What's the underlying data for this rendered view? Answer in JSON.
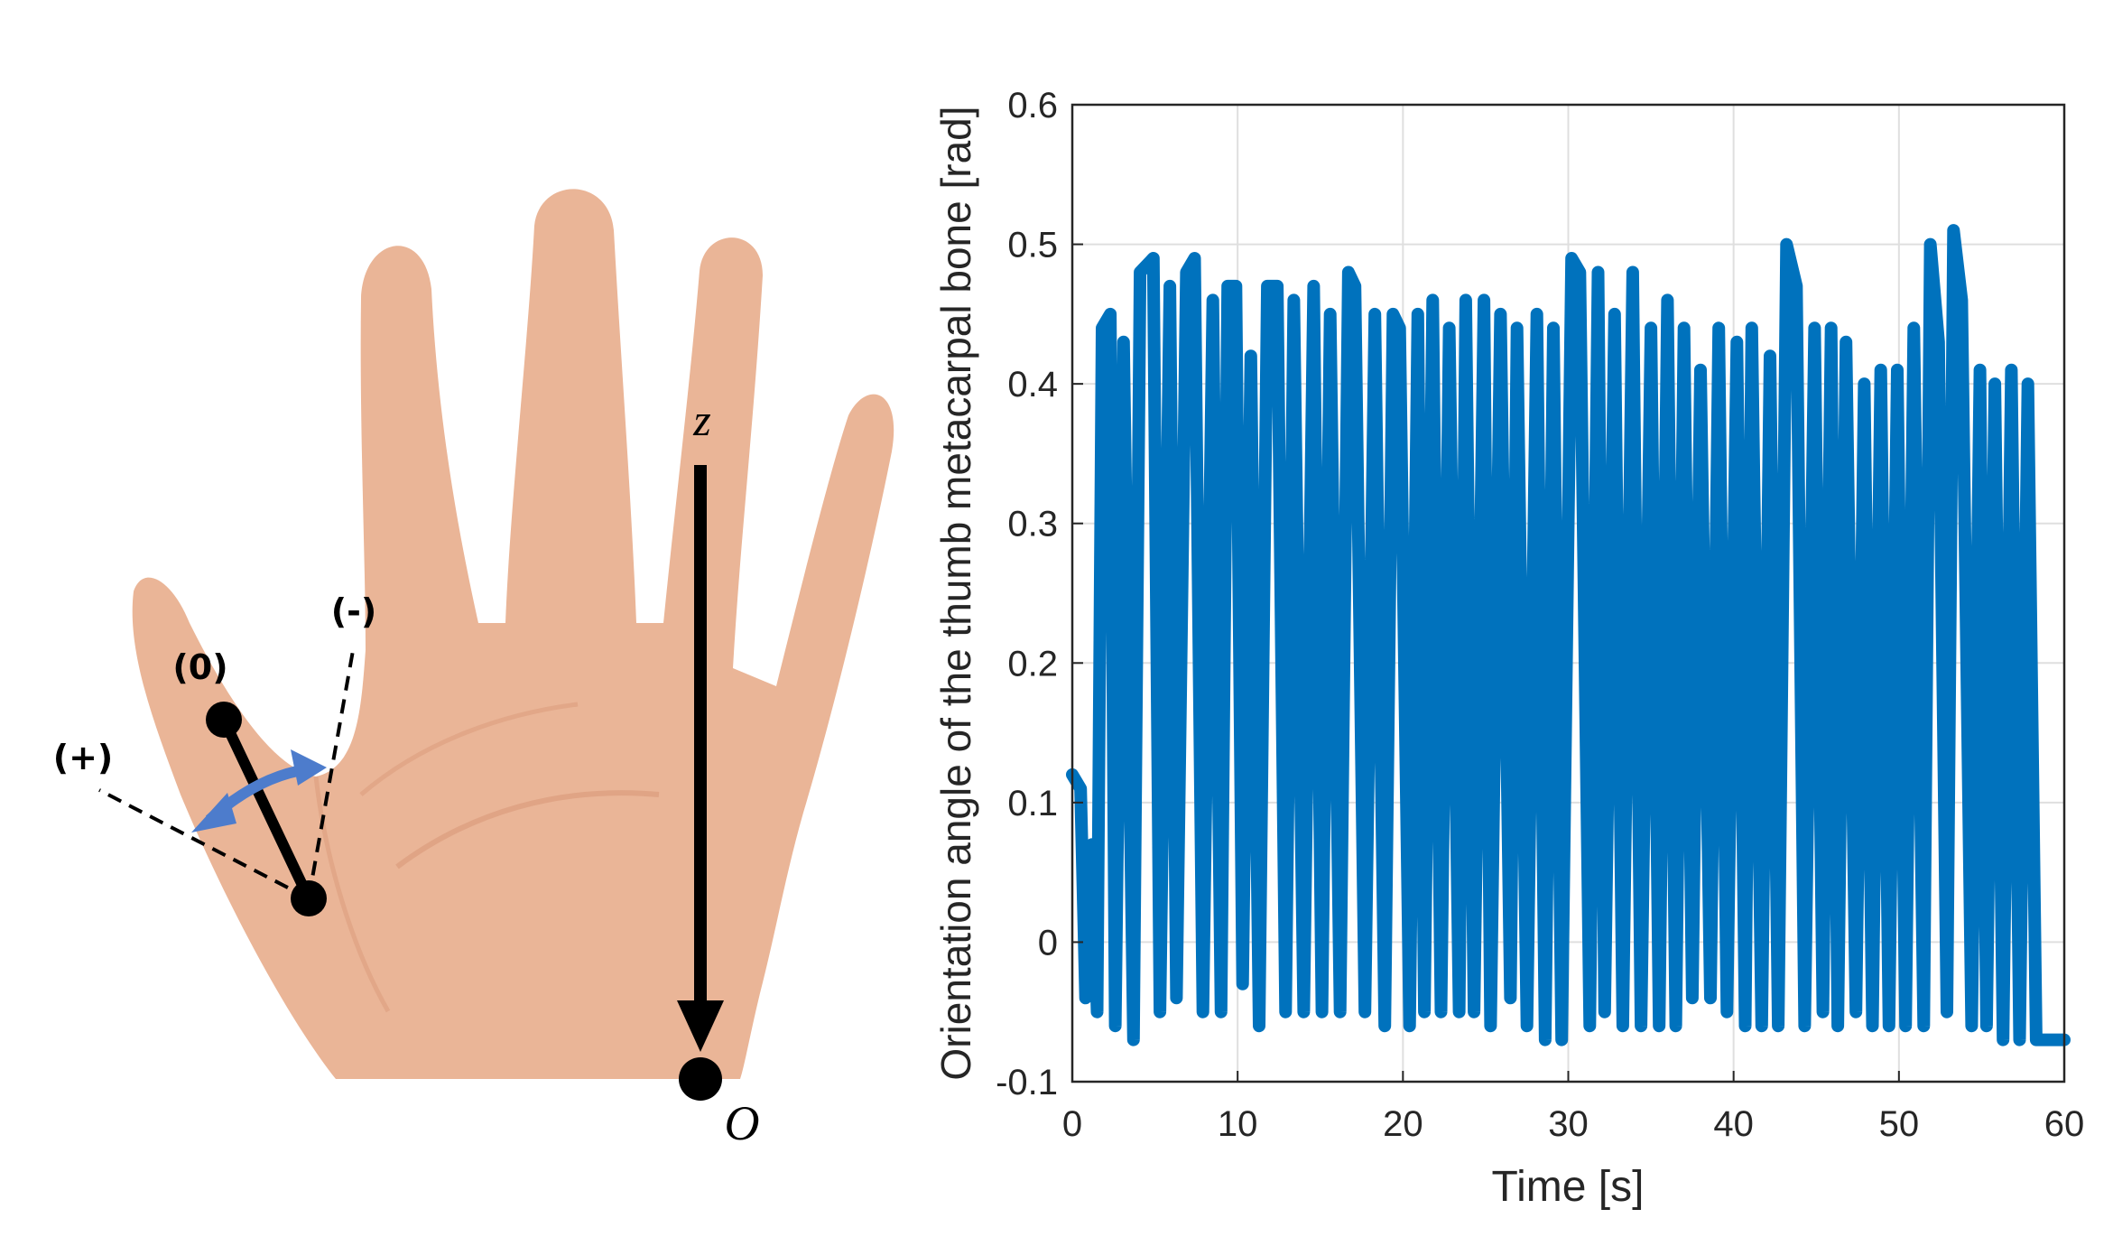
{
  "hand_diagram": {
    "labels": {
      "neutral": "(0)",
      "positive": "(+)",
      "negative": "(-)",
      "z_axis": "z",
      "origin": "O"
    },
    "colors": {
      "skin": "#eab597",
      "skin_shade": "#d9997a",
      "arrow": "#4d7ccc",
      "line": "#000000"
    }
  },
  "chart_data": {
    "type": "line",
    "title": "",
    "xlabel": "Time [s]",
    "ylabel": "Orientation angle of the thumb metacarpal bone [rad]",
    "xlim": [
      0,
      60
    ],
    "ylim": [
      -0.1,
      0.6
    ],
    "xticks": [
      0,
      10,
      20,
      30,
      40,
      50,
      60
    ],
    "xtick_labels": [
      "0",
      "10",
      "20",
      "30",
      "40",
      "50",
      "60"
    ],
    "yticks": [
      -0.1,
      0,
      0.1,
      0.2,
      0.3,
      0.4,
      0.5,
      0.6
    ],
    "ytick_labels": [
      "-0.1",
      "0",
      "0.1",
      "0.2",
      "0.3",
      "0.4",
      "0.5",
      "0.6"
    ],
    "grid": true,
    "color": "#0072bd",
    "series": [
      {
        "x": [
          0,
          0.5,
          0.8,
          1.2,
          1.5,
          1.8,
          2.3,
          2.6,
          3.1,
          3.7,
          4.1,
          4.9,
          5.3,
          5.9,
          6.3,
          6.9,
          7.4,
          7.9,
          8.5,
          9.0,
          9.4,
          9.9,
          10.3,
          10.8,
          11.3,
          11.8,
          12.4,
          12.9,
          13.4,
          14.0,
          14.6,
          15.1,
          15.6,
          16.2,
          16.7,
          17.1,
          17.7,
          18.3,
          18.9,
          19.4,
          19.8,
          20.4,
          20.9,
          21.3,
          21.8,
          22.3,
          22.8,
          23.4,
          23.8,
          24.3,
          24.9,
          25.3,
          25.9,
          26.5,
          26.9,
          27.5,
          28.1,
          28.6,
          29.1,
          29.6,
          30.2,
          30.7,
          31.3,
          31.8,
          32.2,
          32.8,
          33.3,
          33.9,
          34.4,
          35.0,
          35.5,
          36.0,
          36.5,
          37.0,
          37.5,
          38.0,
          38.6,
          39.1,
          39.6,
          40.2,
          40.7,
          41.1,
          41.7,
          42.2,
          42.7,
          43.2,
          43.8,
          44.3,
          44.9,
          45.4,
          45.9,
          46.3,
          46.8,
          47.4,
          47.9,
          48.4,
          48.9,
          49.4,
          49.9,
          50.4,
          50.9,
          51.5,
          51.9,
          52.4,
          52.9,
          53.3,
          53.8,
          54.4,
          54.9,
          55.3,
          55.8,
          56.3,
          56.8,
          57.3,
          57.8,
          58.3,
          58.8,
          59.3,
          59.7,
          60
        ],
        "y": [
          0.12,
          0.11,
          -0.04,
          0.07,
          -0.05,
          0.44,
          0.45,
          -0.06,
          0.43,
          -0.07,
          0.48,
          0.49,
          -0.05,
          0.47,
          -0.04,
          0.48,
          0.49,
          -0.05,
          0.46,
          -0.05,
          0.47,
          0.47,
          -0.03,
          0.42,
          -0.06,
          0.47,
          0.47,
          -0.05,
          0.46,
          -0.05,
          0.47,
          -0.05,
          0.45,
          -0.05,
          0.48,
          0.47,
          -0.05,
          0.45,
          -0.06,
          0.45,
          0.44,
          -0.06,
          0.45,
          -0.05,
          0.46,
          -0.05,
          0.44,
          -0.05,
          0.46,
          -0.05,
          0.46,
          -0.06,
          0.45,
          -0.04,
          0.44,
          -0.06,
          0.45,
          -0.07,
          0.44,
          -0.07,
          0.49,
          0.48,
          -0.06,
          0.48,
          -0.05,
          0.45,
          -0.06,
          0.48,
          -0.06,
          0.44,
          -0.06,
          0.46,
          -0.06,
          0.44,
          -0.04,
          0.41,
          -0.04,
          0.44,
          -0.05,
          0.43,
          -0.06,
          0.44,
          -0.06,
          0.42,
          -0.06,
          0.5,
          0.47,
          -0.06,
          0.44,
          -0.05,
          0.44,
          -0.06,
          0.43,
          -0.05,
          0.4,
          -0.06,
          0.41,
          -0.06,
          0.41,
          -0.06,
          0.44,
          -0.06,
          0.5,
          0.43,
          -0.05,
          0.51,
          0.46,
          -0.06,
          0.41,
          -0.06,
          0.4,
          -0.07,
          0.41,
          -0.07,
          0.4,
          -0.07,
          -0.07,
          -0.07,
          -0.07,
          -0.07
        ]
      }
    ]
  }
}
